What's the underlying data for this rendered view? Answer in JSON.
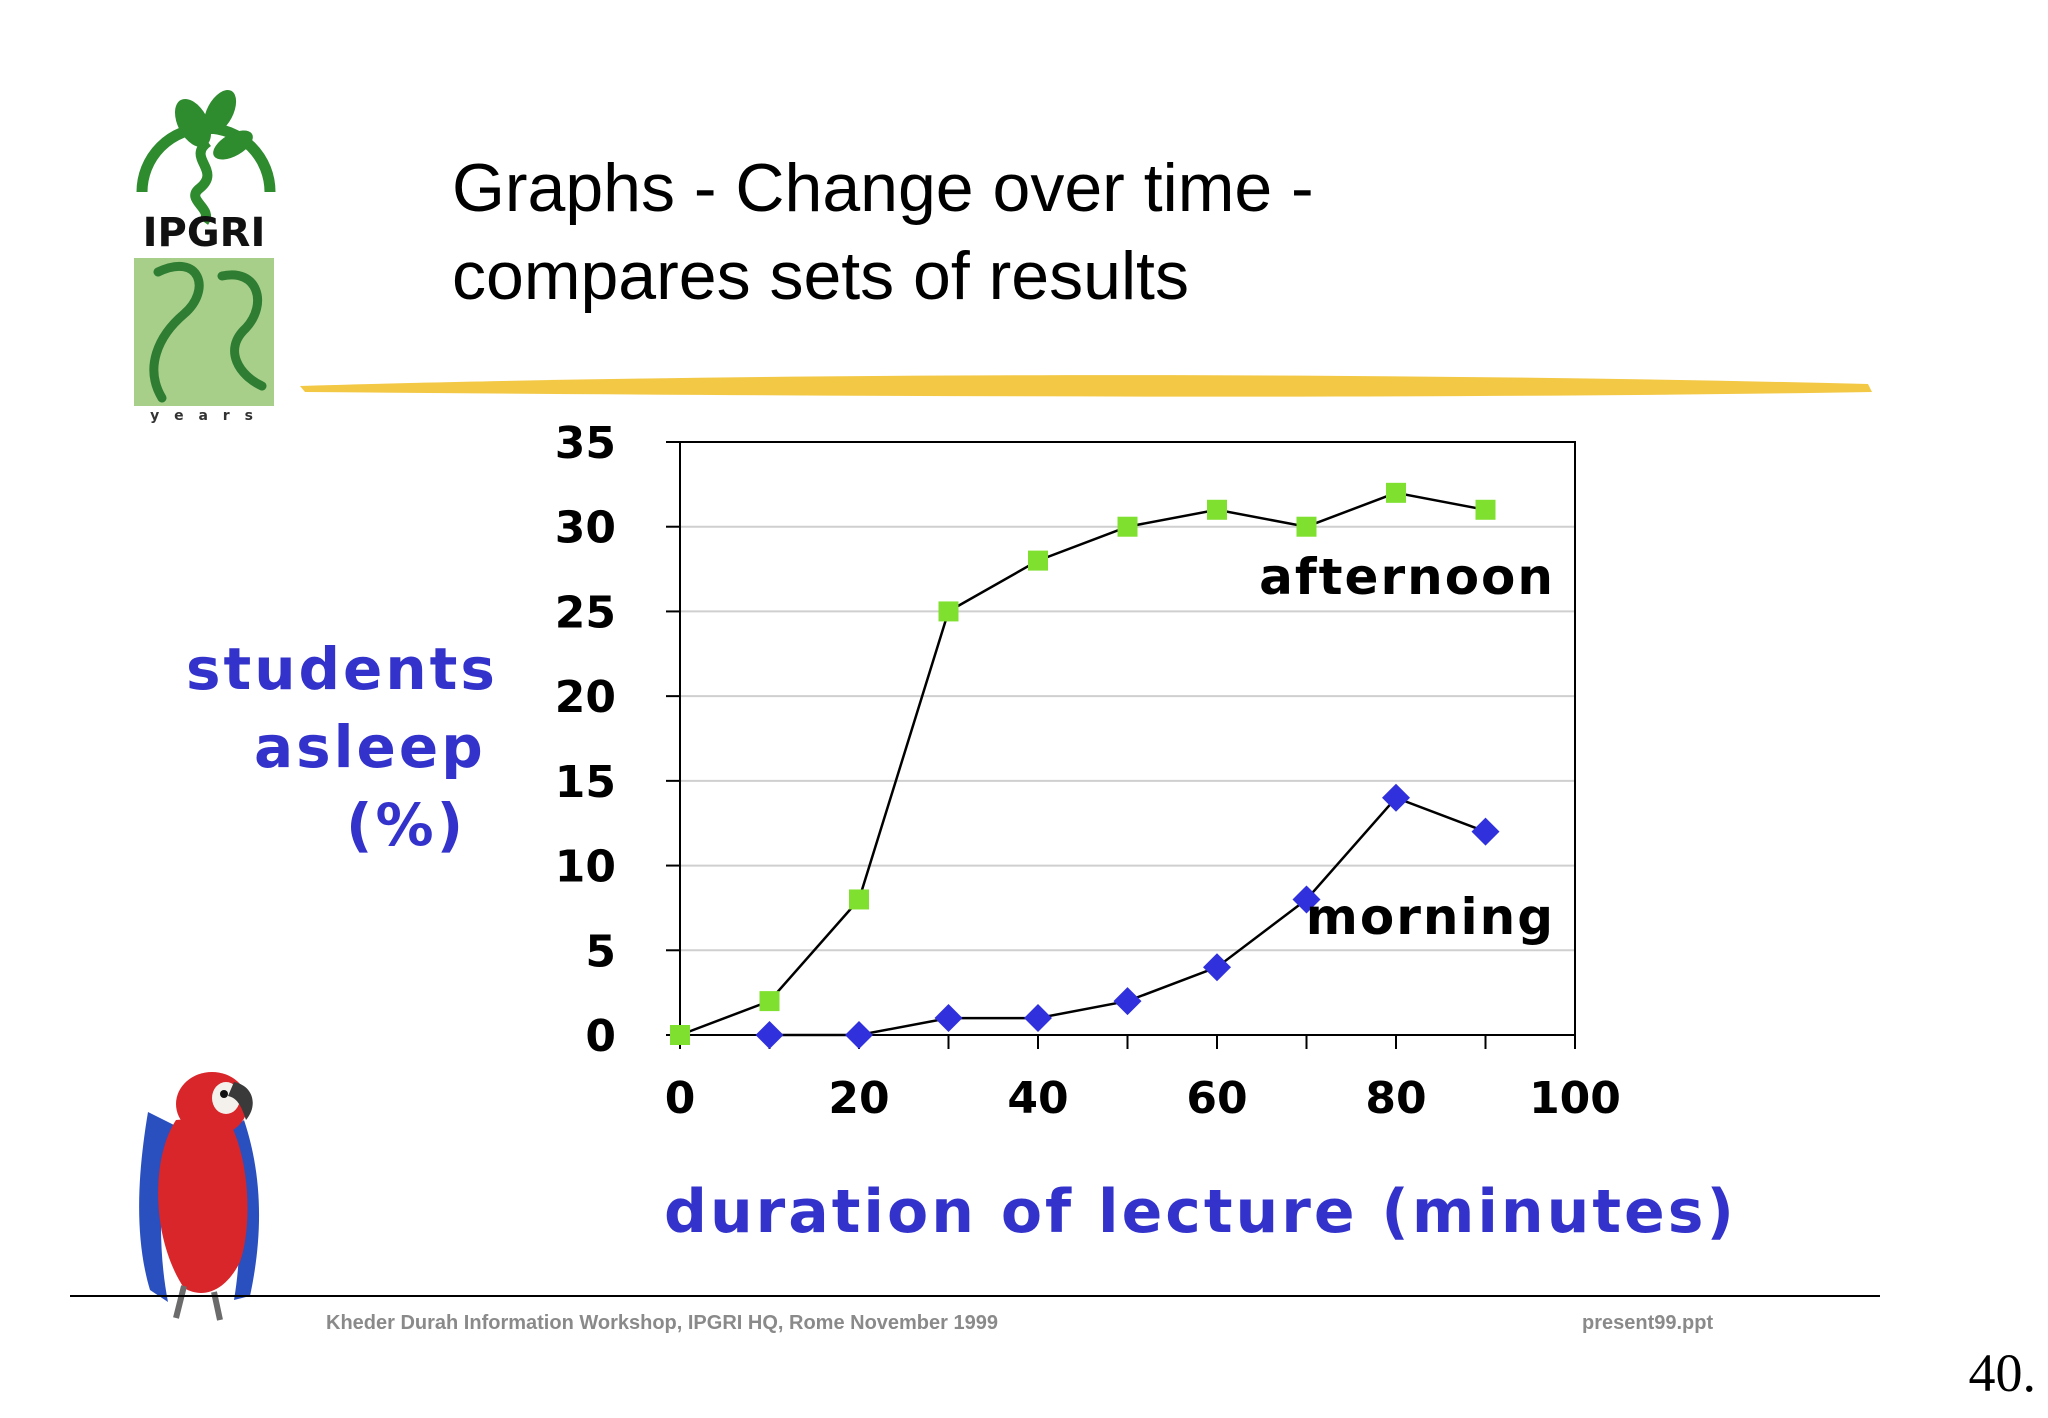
{
  "title": [
    "Graphs - Change over time -",
    "compares sets of results"
  ],
  "logo": {
    "text": "IPGRI",
    "years_word": "y e a r s",
    "brand_color": "#2e8b2e",
    "panel_color": "#a8cf8a"
  },
  "footer": {
    "left": "Kheder Durah Information  Workshop, IPGRI HQ, Rome  November 1999",
    "right": "present99.ppt"
  },
  "slide_number": "40.",
  "decorations": [
    "parrot-illustration",
    "yellow-brush-stroke"
  ],
  "chart_data": {
    "type": "line",
    "title": "",
    "xlabel": "duration of lecture (minutes)",
    "ylabel": [
      "students",
      "asleep",
      "(%)"
    ],
    "xlim": [
      0,
      100
    ],
    "ylim": [
      0,
      35
    ],
    "x_ticks": [
      0,
      20,
      40,
      60,
      80,
      100
    ],
    "y_ticks": [
      0,
      5,
      10,
      15,
      20,
      25,
      30,
      35
    ],
    "grid": "horizontal",
    "series": [
      {
        "name": "afternoon",
        "marker": "square",
        "color": "#7fe030",
        "x": [
          0,
          10,
          20,
          30,
          40,
          50,
          60,
          70,
          80,
          90
        ],
        "y": [
          0,
          2,
          8,
          25,
          28,
          30,
          31,
          30,
          32,
          31
        ]
      },
      {
        "name": "morning",
        "marker": "diamond",
        "color": "#3030dd",
        "x": [
          10,
          20,
          30,
          40,
          50,
          60,
          70,
          80,
          90
        ],
        "y": [
          0,
          0,
          1,
          1,
          2,
          4,
          8,
          14,
          12
        ]
      }
    ]
  }
}
